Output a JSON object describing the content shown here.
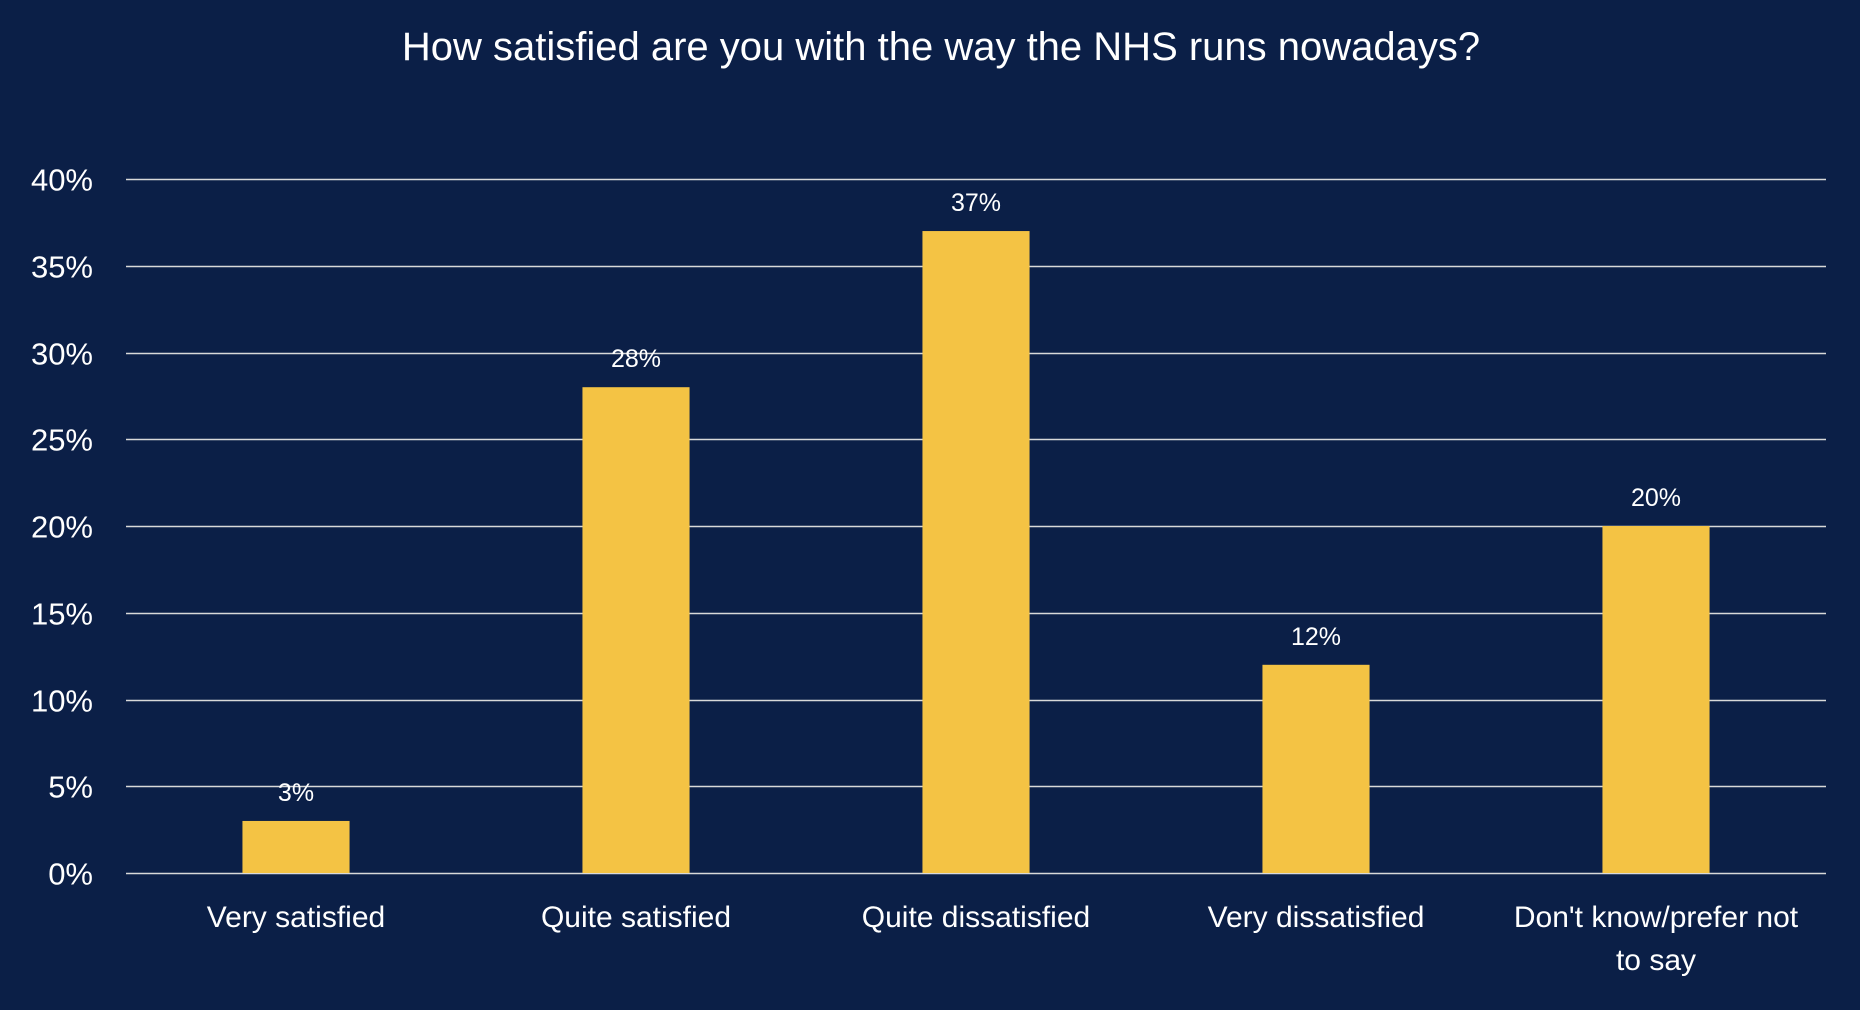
{
  "chart_data": {
    "type": "bar",
    "title": "How satisfied are you with the way the NHS runs nowadays?",
    "xlabel": "",
    "ylabel": "",
    "categories": [
      [
        "Very satisfied"
      ],
      [
        "Quite satisfied"
      ],
      [
        "Quite dissatisfied"
      ],
      [
        "Very dissatisfied"
      ],
      [
        "Don't know/prefer not",
        "to say"
      ]
    ],
    "values": [
      3,
      28,
      37,
      12,
      20
    ],
    "data_labels": [
      "3%",
      "28%",
      "37%",
      "12%",
      "20%"
    ],
    "ylim": [
      0,
      40
    ],
    "yticks": [
      0,
      5,
      10,
      15,
      20,
      25,
      30,
      35,
      40
    ],
    "ytick_labels": [
      "0%",
      "5%",
      "10%",
      "15%",
      "20%",
      "25%",
      "30%",
      "35%",
      "40%"
    ],
    "grid": true,
    "legend": "none",
    "colors": {
      "background": "#0B1F47",
      "bar": "#F4C344",
      "gridline": "#D9D9D9",
      "text": "#FFFFFF"
    }
  }
}
